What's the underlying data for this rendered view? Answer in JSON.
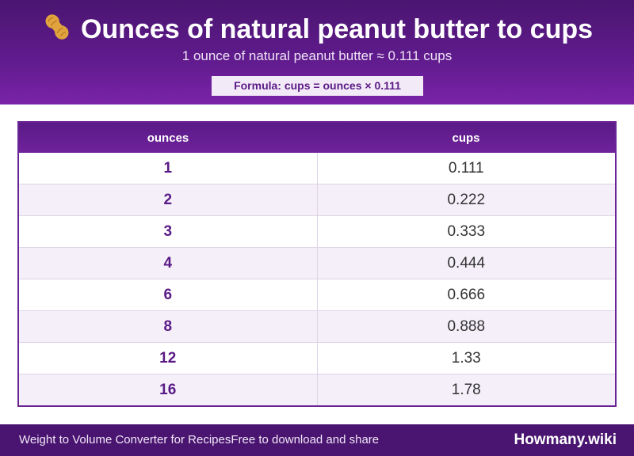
{
  "header": {
    "title": "Ounces of natural peanut butter to cups",
    "subtitle": "1 ounce of natural peanut butter ≈ 0.111 cups",
    "formula": "Formula: cups = ounces × 0.111",
    "icon": "peanut-icon"
  },
  "table": {
    "columns": [
      "ounces",
      "cups"
    ],
    "rows": [
      {
        "ounces": "1",
        "cups": "0.111"
      },
      {
        "ounces": "2",
        "cups": "0.222"
      },
      {
        "ounces": "3",
        "cups": "0.333"
      },
      {
        "ounces": "4",
        "cups": "0.444"
      },
      {
        "ounces": "6",
        "cups": "0.666"
      },
      {
        "ounces": "8",
        "cups": "0.888"
      },
      {
        "ounces": "12",
        "cups": "1.33"
      },
      {
        "ounces": "16",
        "cups": "1.78"
      }
    ]
  },
  "footer": {
    "left_text": "Weight to Volume Converter for Recipes",
    "share_text": "Free to download and share",
    "brand": "Howmany.wiki"
  },
  "colors": {
    "primary": "#5a1a86",
    "header_bg": "#4a1570",
    "row_alt": "#f4eff9"
  }
}
